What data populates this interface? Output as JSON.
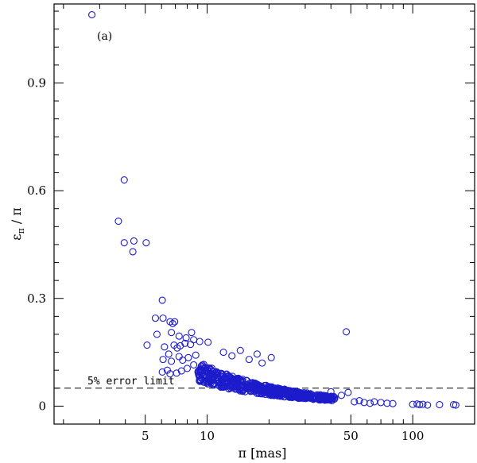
{
  "chart_data": {
    "type": "scatter",
    "xlabel": "π [mas]",
    "ylabel_parts": {
      "main": "ε",
      "sub": "π",
      "tail": " / π"
    },
    "x_scale": "log",
    "xlim": [
      1.8,
      200
    ],
    "ylim": [
      -0.05,
      1.12
    ],
    "x_ticks": [
      {
        "value": 5,
        "label": "5"
      },
      {
        "value": 10,
        "label": "10"
      },
      {
        "value": 50,
        "label": "50"
      },
      {
        "value": 100,
        "label": "100"
      }
    ],
    "y_ticks": [
      {
        "value": 0,
        "label": "0"
      },
      {
        "value": 0.3,
        "label": "0.3"
      },
      {
        "value": 0.6,
        "label": "0.6"
      },
      {
        "value": 0.9,
        "label": "0.9"
      }
    ],
    "panel_label": "(a)",
    "reference_line": {
      "y": 0.05,
      "label": "5% error limit",
      "style": "dashed"
    },
    "marker_color": "#1c1ccc",
    "points": [
      [
        2.75,
        1.09
      ],
      [
        3.95,
        0.63
      ],
      [
        3.7,
        0.515
      ],
      [
        4.4,
        0.46
      ],
      [
        3.95,
        0.455
      ],
      [
        5.05,
        0.455
      ],
      [
        4.35,
        0.43
      ],
      [
        6.05,
        0.295
      ],
      [
        5.6,
        0.245
      ],
      [
        6.1,
        0.245
      ],
      [
        6.6,
        0.235
      ],
      [
        6.95,
        0.235
      ],
      [
        6.8,
        0.23
      ],
      [
        8.4,
        0.205
      ],
      [
        5.7,
        0.2
      ],
      [
        6.7,
        0.205
      ],
      [
        7.3,
        0.195
      ],
      [
        7.9,
        0.19
      ],
      [
        8.6,
        0.185
      ],
      [
        9.2,
        0.18
      ],
      [
        10.1,
        0.178
      ],
      [
        5.1,
        0.17
      ],
      [
        6.2,
        0.165
      ],
      [
        6.9,
        0.17
      ],
      [
        7.4,
        0.168
      ],
      [
        7.8,
        0.175
      ],
      [
        8.3,
        0.172
      ],
      [
        7.15,
        0.162
      ],
      [
        6.5,
        0.145
      ],
      [
        6.1,
        0.13
      ],
      [
        6.7,
        0.125
      ],
      [
        7.3,
        0.138
      ],
      [
        7.6,
        0.128
      ],
      [
        8.1,
        0.135
      ],
      [
        8.8,
        0.142
      ],
      [
        6.4,
        0.1
      ],
      [
        6.6,
        0.09
      ],
      [
        6.05,
        0.095
      ],
      [
        7.1,
        0.092
      ],
      [
        7.5,
        0.098
      ],
      [
        8.0,
        0.105
      ],
      [
        8.6,
        0.115
      ],
      [
        14.5,
        0.155
      ],
      [
        17.5,
        0.145
      ],
      [
        20.5,
        0.135
      ],
      [
        12.0,
        0.15
      ],
      [
        13.2,
        0.14
      ],
      [
        16.0,
        0.13
      ],
      [
        18.5,
        0.12
      ],
      [
        47.5,
        0.207
      ],
      [
        40.0,
        0.04
      ],
      [
        45.0,
        0.03
      ],
      [
        48.5,
        0.038
      ],
      [
        52.0,
        0.012
      ],
      [
        55.0,
        0.015
      ],
      [
        58.0,
        0.01
      ],
      [
        62.0,
        0.008
      ],
      [
        65.0,
        0.012
      ],
      [
        70.0,
        0.01
      ],
      [
        75.0,
        0.008
      ],
      [
        80.0,
        0.007
      ],
      [
        100.0,
        0.005
      ],
      [
        105.0,
        0.006
      ],
      [
        108.0,
        0.004
      ],
      [
        112.0,
        0.005
      ],
      [
        118.0,
        0.003
      ],
      [
        135.0,
        0.004
      ],
      [
        158.0,
        0.004
      ],
      [
        162.0,
        0.003
      ]
    ]
  }
}
